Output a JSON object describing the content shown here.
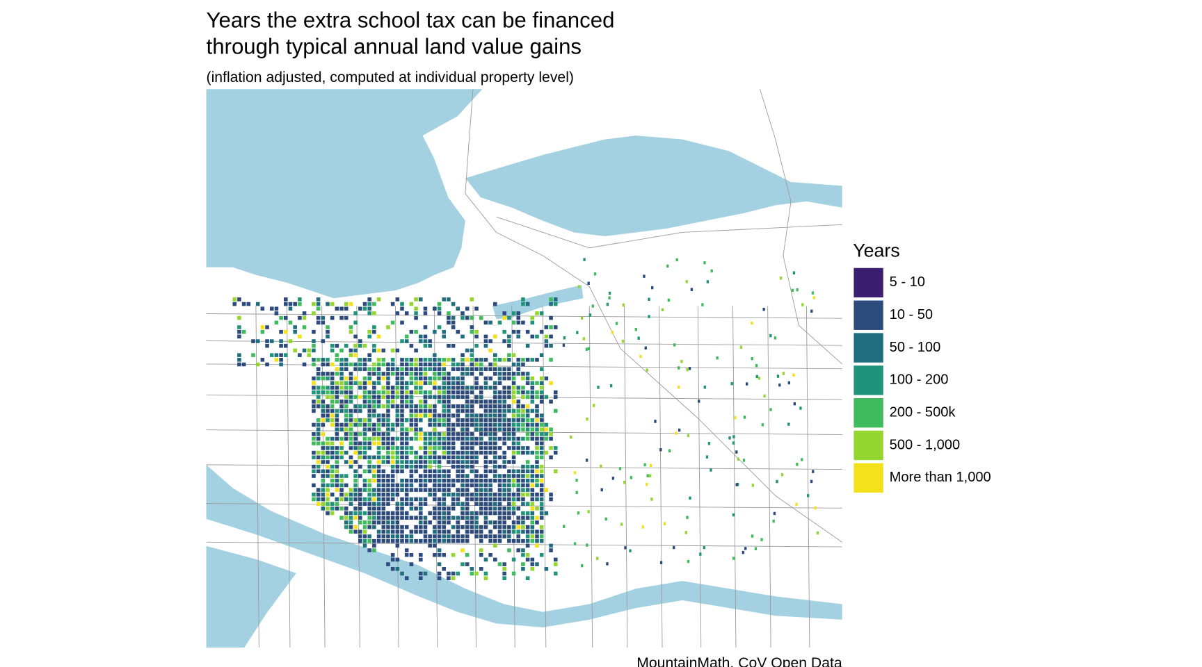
{
  "title_lines": [
    "Years the extra school tax can be financed",
    "through typical annual land value gains"
  ],
  "subtitle": "(inflation adjusted, computed at individual property level)",
  "legend": {
    "title": "Years",
    "items": [
      {
        "label": "5 - 10",
        "color": "#3b1f6e"
      },
      {
        "label": "10 - 50",
        "color": "#2c4a7c"
      },
      {
        "label": "50 - 100",
        "color": "#1f6d7d"
      },
      {
        "label": "100 - 200",
        "color": "#20937a"
      },
      {
        "label": "200 - 500k",
        "color": "#3fbb5d"
      },
      {
        "label": "500 - 1,000",
        "color": "#95d52f"
      },
      {
        "label": "More than 1,000",
        "color": "#f5e01e"
      }
    ]
  },
  "caption": "MountainMath, CoV Open Data"
}
